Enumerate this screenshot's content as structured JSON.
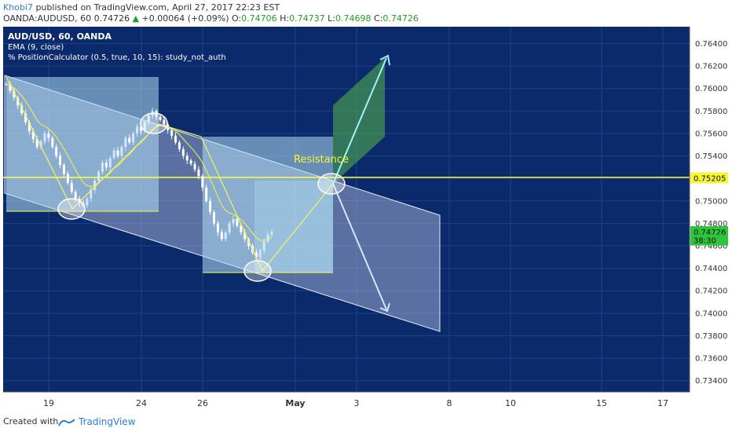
{
  "header": {
    "author": "Khobi7",
    "published_text": "published on TradingView.com, April 27, 2017 22:23 EST",
    "symbol": "OANDA:AUDUSD, 60",
    "price": "0.74726",
    "change": "+0.00064 (+0.09%)",
    "o_label": "O:",
    "o_value": "0.74706",
    "h_label": "H:",
    "h_value": "0.74737",
    "l_label": "L:",
    "l_value": "0.74698",
    "c_label": "C:",
    "c_value": "0.74726"
  },
  "legend": {
    "line1": "AUD/USD, 60, OANDA",
    "line2": "EMA (9, close)",
    "line3": "% PositionCalculator (0.5, true, 10, 15): study_not_auth"
  },
  "annotation": "Resistance",
  "footer": {
    "created_with": "Created with",
    "brand": "TradingView"
  },
  "colors": {
    "background": "#0b2a6b",
    "grid": "#1d4289",
    "candle_up": "#cfe8ff",
    "candle_down": "#ffffff",
    "resistance_line": "#ffff3a",
    "ema_line": "#f5f54a",
    "channel_fill": "#c7cfee",
    "green_target": "#4a9f52",
    "label_yellow": "#f7f736",
    "label_green": "#2cc53c"
  },
  "chart_data": {
    "type": "line",
    "x_labels": [
      "19",
      "24",
      "26",
      "May",
      "3",
      "8",
      "10",
      "15",
      "17"
    ],
    "ylim": [
      0.733,
      0.7655
    ],
    "y_ticks": [
      "0.76400",
      "0.76200",
      "0.76000",
      "0.75800",
      "0.75600",
      "0.75400",
      "0.75200",
      "0.75000",
      "0.74800",
      "0.74600",
      "0.74400",
      "0.74200",
      "0.74000",
      "0.73800",
      "0.73600",
      "0.73400"
    ],
    "price_labels": [
      {
        "text": "0.75205",
        "value": 0.75205,
        "color": "#f7f736"
      },
      {
        "text": "0.74726",
        "value": 0.74726,
        "color": "#2cc53c"
      },
      {
        "text": "38:30",
        "value": 0.74652,
        "color": "#2cc53c"
      }
    ],
    "resistance": 0.7521,
    "close_prices": [
      0.7604,
      0.7598,
      0.7592,
      0.7585,
      0.7578,
      0.757,
      0.7562,
      0.7555,
      0.7548,
      0.7553,
      0.756,
      0.7556,
      0.7548,
      0.754,
      0.7532,
      0.7524,
      0.7516,
      0.7508,
      0.7502,
      0.7498,
      0.7496,
      0.7502,
      0.751,
      0.7518,
      0.7526,
      0.7534,
      0.753,
      0.7538,
      0.7545,
      0.754,
      0.7548,
      0.7556,
      0.7552,
      0.756,
      0.7566,
      0.7562,
      0.757,
      0.7576,
      0.758,
      0.7575,
      0.7572,
      0.7568,
      0.7563,
      0.7558,
      0.7552,
      0.7546,
      0.754,
      0.7536,
      0.7533,
      0.7528,
      0.7522,
      0.7512,
      0.75,
      0.749,
      0.748,
      0.7472,
      0.7466,
      0.7472,
      0.748,
      0.7484,
      0.7478,
      0.7472,
      0.7466,
      0.746,
      0.7454,
      0.745,
      0.7456,
      0.7464,
      0.747,
      0.74726
    ]
  }
}
